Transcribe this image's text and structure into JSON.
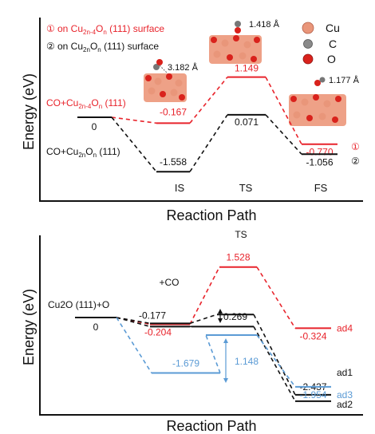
{
  "colors": {
    "red": "#e8232b",
    "black": "#111111",
    "blue": "#5b9bd5",
    "cu_atom": "#e9967a",
    "c_atom": "#8a8a8a",
    "o_atom": "#d9221c"
  },
  "chart_data": [
    {
      "type": "line",
      "chart_style": "energy-level diagram",
      "xlabel": "Reaction Path",
      "ylabel": "Energy (eV)",
      "states": [
        "start",
        "IS",
        "TS",
        "FS"
      ],
      "state_labels": [
        "",
        "IS",
        "TS",
        "FS"
      ],
      "legend": [
        {
          "marker": "①",
          "text": "on Cu2n-4On (111) surface",
          "color": "red"
        },
        {
          "marker": "②",
          "text": "on Cu2nOn (111) surface",
          "color": "black"
        }
      ],
      "series": [
        {
          "name": "CO+Cu2n-4On (111)",
          "color": "red",
          "values": [
            0,
            -0.167,
            1.149,
            -0.77
          ],
          "labels": [
            "",
            "-0.167",
            "1.149",
            "-0.770"
          ],
          "end_marker": "①"
        },
        {
          "name": "CO+Cu2nOn (111)",
          "color": "black",
          "values": [
            0,
            -1.558,
            0.071,
            -1.056
          ],
          "labels": [
            "0",
            "-1.558",
            "0.071",
            "-1.056"
          ],
          "end_marker": "②"
        }
      ],
      "atom_legend": [
        {
          "symbol": "Cu",
          "color": "cu_atom"
        },
        {
          "symbol": "C",
          "color": "c_atom"
        },
        {
          "symbol": "O",
          "color": "o_atom"
        }
      ],
      "annotations": [
        "3.182 Å",
        "1.418 Å",
        "1.177 Å"
      ]
    },
    {
      "type": "line",
      "chart_style": "energy-level diagram",
      "xlabel": "Reaction Path",
      "ylabel": "Energy (eV)",
      "start_label": "Cu2O (111)+O",
      "start_value_label": "0",
      "co_label": "+CO",
      "ts_label": "TS",
      "series": [
        {
          "name": "ad4",
          "color": "red",
          "points": [
            {
              "stage": "start",
              "value": 0
            },
            {
              "stage": "IS",
              "value": -0.204,
              "label": "-0.204"
            },
            {
              "stage": "TS",
              "value": 1.528,
              "label": "1.528"
            },
            {
              "stage": "FS",
              "value": -0.324,
              "label": "-0.324"
            }
          ]
        },
        {
          "name": "ad1",
          "color": "black",
          "points": [
            {
              "stage": "start",
              "value": 0
            },
            {
              "stage": "IS",
              "value": -0.177,
              "label": "-0.177"
            },
            {
              "stage": "TS",
              "value": 0.092
            },
            {
              "stage": "FS",
              "value": -2.437,
              "label": "-2.437"
            }
          ]
        },
        {
          "name": "ad2",
          "color": "black",
          "points": [
            {
              "stage": "start",
              "value": 0
            },
            {
              "stage": "IS",
              "value": -0.177
            },
            {
              "stage": "TS",
              "value": 0.092
            },
            {
              "stage": "FS",
              "value": -2.437
            }
          ]
        },
        {
          "name": "ad3",
          "color": "blue",
          "points": [
            {
              "stage": "start",
              "value": 0
            },
            {
              "stage": "IS",
              "value": -1.679,
              "label": "-1.679"
            },
            {
              "stage": "TS",
              "value": -0.531
            },
            {
              "stage": "FS",
              "value": -1.954,
              "label": "-1.954"
            }
          ]
        }
      ],
      "barriers": [
        {
          "series": "ad1",
          "value": 0.269,
          "label": "0.269"
        },
        {
          "series": "ad3",
          "value": 1.148,
          "label": "1.148"
        }
      ]
    }
  ]
}
